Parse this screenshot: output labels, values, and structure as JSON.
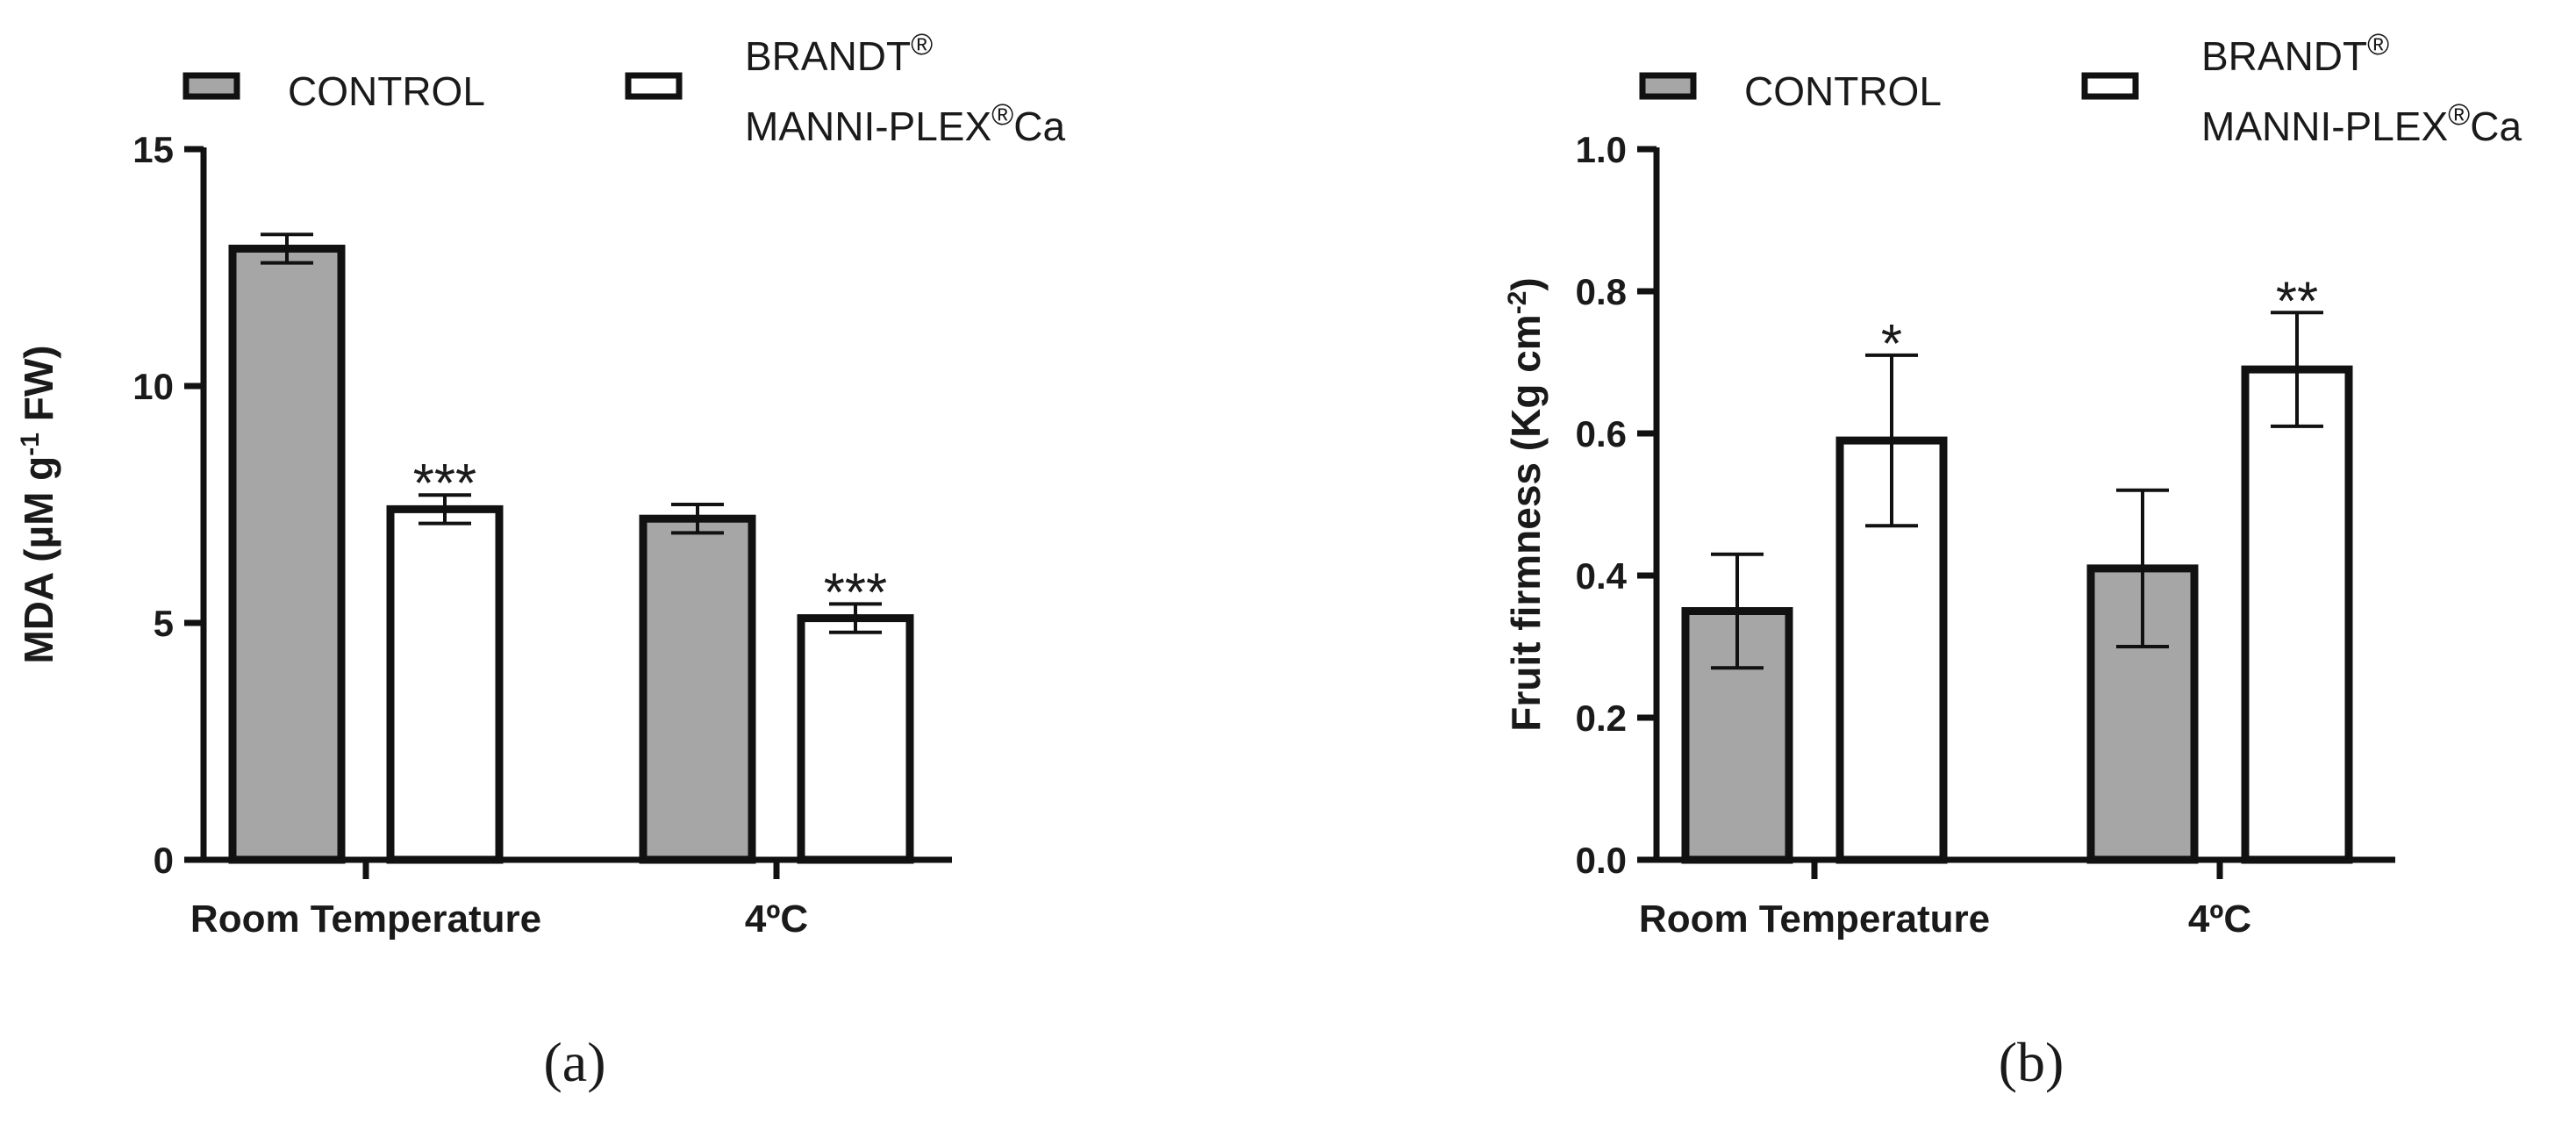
{
  "colors": {
    "control_fill": "#a6a6a6",
    "treatment_fill": "#ffffff",
    "stroke": "#111111"
  },
  "legend": {
    "control": "CONTROL",
    "treatment_line1": "BRANDT",
    "treatment_line2": "MANNI-PLEX",
    "treatment_suffix": "Ca",
    "registered": "®"
  },
  "chart_data": [
    {
      "panel": "(a)",
      "type": "bar",
      "categories": [
        "Room Temperature",
        "4ºC"
      ],
      "ylabel_parts": {
        "main": "MDA (µM g",
        "sup": "-1",
        "rest": " FW)"
      },
      "ylim": [
        0,
        15
      ],
      "yticks": [
        0,
        5,
        10,
        15
      ],
      "series": [
        {
          "name": "CONTROL",
          "values": [
            12.9,
            7.2
          ],
          "errors": [
            0.3,
            0.3
          ],
          "marks": [
            "",
            ""
          ]
        },
        {
          "name": "BRANDT® MANNI-PLEX®Ca",
          "values": [
            7.4,
            5.1
          ],
          "errors": [
            0.3,
            0.3
          ],
          "marks": [
            "***",
            "***"
          ]
        }
      ]
    },
    {
      "panel": "(b)",
      "type": "bar",
      "categories": [
        "Room Temperature",
        "4ºC"
      ],
      "ylabel_parts": {
        "main": "Fruit firmness (Kg cm",
        "sup": "-2",
        "rest": ")"
      },
      "ylim": [
        0,
        1.0
      ],
      "yticks": [
        0.0,
        0.2,
        0.4,
        0.6,
        0.8,
        1.0
      ],
      "series": [
        {
          "name": "CONTROL",
          "values": [
            0.35,
            0.41
          ],
          "errors": [
            0.08,
            0.11
          ],
          "marks": [
            "",
            ""
          ]
        },
        {
          "name": "BRANDT® MANNI-PLEX®Ca",
          "values": [
            0.59,
            0.69
          ],
          "errors": [
            0.12,
            0.08
          ],
          "marks": [
            "*",
            "**"
          ]
        }
      ]
    }
  ]
}
